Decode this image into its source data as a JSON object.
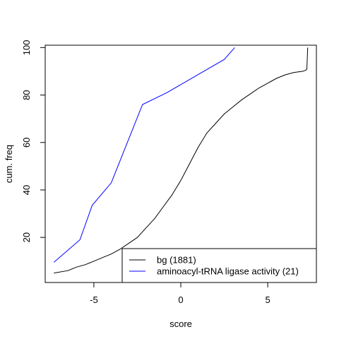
{
  "chart_data": {
    "type": "line",
    "title": "",
    "xlabel": "score",
    "ylabel": "cum. freq",
    "xlim": [
      -7.8,
      7.8
    ],
    "ylim": [
      1,
      101
    ],
    "x_ticks": [
      -5,
      0,
      5
    ],
    "x_tick_labels": [
      "-5",
      "0",
      "5"
    ],
    "y_ticks": [
      20,
      40,
      60,
      80,
      100
    ],
    "y_tick_labels": [
      "20",
      "40",
      "60",
      "80",
      "100"
    ],
    "grid": false,
    "legend_position": "bottom-right",
    "series": [
      {
        "name": "bg (1881)",
        "color": "#000000",
        "x": [
          -7.3,
          -6.5,
          -6.0,
          -5.5,
          -5.0,
          -4.5,
          -4.0,
          -3.5,
          -3.0,
          -2.5,
          -2.0,
          -1.5,
          -1.0,
          -0.5,
          0.0,
          0.5,
          1.0,
          1.5,
          2.0,
          2.5,
          3.0,
          3.5,
          4.0,
          4.5,
          5.0,
          5.5,
          6.0,
          6.5,
          7.0,
          7.2,
          7.25,
          7.3
        ],
        "y": [
          5,
          6,
          7.5,
          8.5,
          10,
          11.5,
          13,
          15,
          17.5,
          20,
          24,
          28,
          33,
          38,
          44,
          51,
          58,
          64,
          68,
          72,
          75,
          78,
          80.5,
          83,
          85,
          87,
          88.5,
          89.5,
          90,
          90.5,
          91,
          100
        ]
      },
      {
        "name": "aminoacyl-tRNA ligase activity (21)",
        "color": "#0000ff",
        "x": [
          -7.3,
          -5.8,
          -5.1,
          -4.0,
          -2.2,
          -0.8,
          2.5,
          3.1
        ],
        "y": [
          9.5,
          19,
          33.5,
          43,
          76,
          81,
          95,
          100
        ]
      }
    ]
  }
}
